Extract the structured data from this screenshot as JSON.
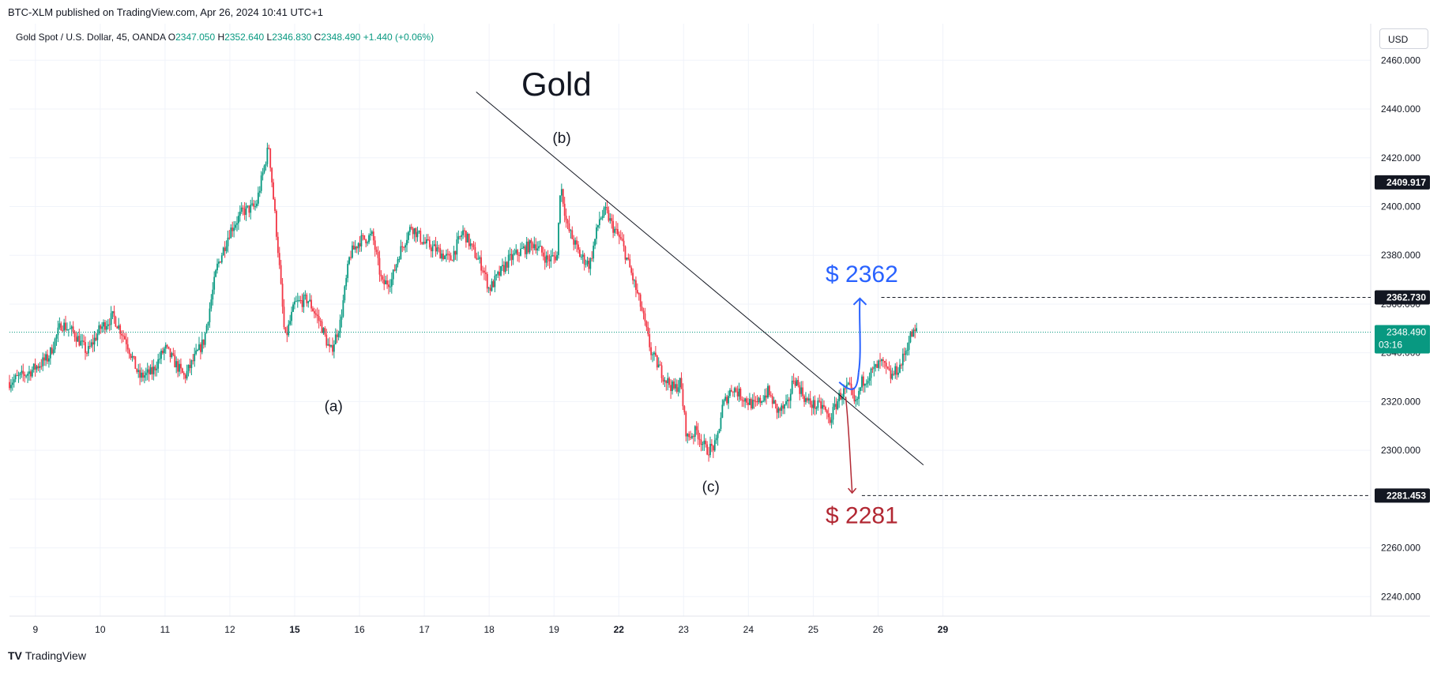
{
  "published": "BTC-XLM published on TradingView.com, Apr 26, 2024 10:41 UTC+1",
  "currency": "USD",
  "footer": {
    "logo": "TV",
    "brand": "TradingView"
  },
  "colors": {
    "up": "#089981",
    "down": "#f23645",
    "target_up": "#2962ff",
    "target_down": "#b22833",
    "label_bg": "#131722"
  },
  "chart_data": {
    "type": "candlestick",
    "title": "Gold",
    "legend": {
      "symbol": "Gold Spot / U.S. Dollar, 45, OANDA",
      "o_label": "O",
      "o": "2347.050",
      "h_label": "H",
      "h": "2352.640",
      "l_label": "L",
      "l": "2346.830",
      "c_label": "C",
      "c": "2348.490",
      "change": "+1.440 (+0.06%)"
    },
    "ylim": [
      2232,
      2475
    ],
    "xlim": [
      8.6,
      29.6
    ],
    "y_ticks": [
      "2240.000",
      "2260.000",
      "2280.000",
      "2300.000",
      "2320.000",
      "2340.000",
      "2360.000",
      "2380.000",
      "2400.000",
      "2420.000",
      "2440.000",
      "2460.000"
    ],
    "x_ticks": [
      {
        "x": 9,
        "label": "9"
      },
      {
        "x": 10,
        "label": "10"
      },
      {
        "x": 11,
        "label": "11"
      },
      {
        "x": 12,
        "label": "12"
      },
      {
        "x": 13,
        "label": "15"
      },
      {
        "x": 14,
        "label": "16"
      },
      {
        "x": 15,
        "label": "17"
      },
      {
        "x": 16,
        "label": "18"
      },
      {
        "x": 17,
        "label": "19"
      },
      {
        "x": 18,
        "label": "22"
      },
      {
        "x": 19,
        "label": "23"
      },
      {
        "x": 20,
        "label": "24"
      },
      {
        "x": 21,
        "label": "25"
      },
      {
        "x": 22,
        "label": "26"
      },
      {
        "x": 23,
        "label": "29"
      }
    ],
    "anchors": [
      [
        8.6,
        2328
      ],
      [
        8.9,
        2332
      ],
      [
        9.2,
        2338
      ],
      [
        9.4,
        2352
      ],
      [
        9.6,
        2348
      ],
      [
        9.8,
        2340
      ],
      [
        10.0,
        2350
      ],
      [
        10.2,
        2355
      ],
      [
        10.4,
        2345
      ],
      [
        10.6,
        2330
      ],
      [
        10.8,
        2332
      ],
      [
        11.0,
        2342
      ],
      [
        11.3,
        2330
      ],
      [
        11.6,
        2345
      ],
      [
        11.8,
        2375
      ],
      [
        12.0,
        2390
      ],
      [
        12.2,
        2398
      ],
      [
        12.4,
        2400
      ],
      [
        12.6,
        2425
      ],
      [
        12.75,
        2380
      ],
      [
        12.85,
        2345
      ],
      [
        13.0,
        2360
      ],
      [
        13.2,
        2362
      ],
      [
        13.4,
        2352
      ],
      [
        13.55,
        2340
      ],
      [
        13.7,
        2352
      ],
      [
        13.85,
        2380
      ],
      [
        14.0,
        2386
      ],
      [
        14.2,
        2388
      ],
      [
        14.35,
        2368
      ],
      [
        14.5,
        2370
      ],
      [
        14.6,
        2380
      ],
      [
        14.8,
        2392
      ],
      [
        15.0,
        2385
      ],
      [
        15.2,
        2382
      ],
      [
        15.4,
        2378
      ],
      [
        15.6,
        2390
      ],
      [
        15.75,
        2382
      ],
      [
        15.9,
        2375
      ],
      [
        16.0,
        2366
      ],
      [
        16.15,
        2372
      ],
      [
        16.3,
        2378
      ],
      [
        16.5,
        2382
      ],
      [
        16.7,
        2385
      ],
      [
        16.9,
        2378
      ],
      [
        17.05,
        2380
      ],
      [
        17.1,
        2410
      ],
      [
        17.2,
        2392
      ],
      [
        17.4,
        2380
      ],
      [
        17.55,
        2376
      ],
      [
        17.7,
        2395
      ],
      [
        17.8,
        2398
      ],
      [
        17.9,
        2392
      ],
      [
        18.05,
        2385
      ],
      [
        18.2,
        2372
      ],
      [
        18.35,
        2358
      ],
      [
        18.5,
        2340
      ],
      [
        18.7,
        2330
      ],
      [
        18.85,
        2325
      ],
      [
        18.95,
        2328
      ],
      [
        19.05,
        2305
      ],
      [
        19.2,
        2308
      ],
      [
        19.35,
        2300
      ],
      [
        19.5,
        2302
      ],
      [
        19.6,
        2318
      ],
      [
        19.75,
        2326
      ],
      [
        19.9,
        2322
      ],
      [
        20.1,
        2318
      ],
      [
        20.3,
        2324
      ],
      [
        20.45,
        2316
      ],
      [
        20.6,
        2318
      ],
      [
        20.7,
        2330
      ],
      [
        20.9,
        2320
      ],
      [
        21.05,
        2318
      ],
      [
        21.15,
        2318
      ],
      [
        21.25,
        2312
      ],
      [
        21.4,
        2322
      ],
      [
        21.55,
        2326
      ],
      [
        21.65,
        2318
      ],
      [
        21.75,
        2328
      ],
      [
        21.9,
        2332
      ],
      [
        22.05,
        2336
      ],
      [
        22.2,
        2330
      ],
      [
        22.35,
        2335
      ],
      [
        22.5,
        2347
      ],
      [
        22.6,
        2349
      ]
    ],
    "trendline": {
      "from": [
        15.8,
        2447
      ],
      "to": [
        22.7,
        2294
      ]
    },
    "waves": [
      {
        "label": "(a)",
        "x": 13.6,
        "y": 2316
      },
      {
        "label": "(b)",
        "x": 17.12,
        "y": 2426
      },
      {
        "label": "(c)",
        "x": 19.42,
        "y": 2283
      }
    ],
    "price_labels": [
      {
        "value": "2409.917",
        "y": 2409.917
      },
      {
        "value": "2362.730",
        "y": 2362.73
      },
      {
        "value": "2281.453",
        "y": 2281.453
      }
    ],
    "current_price": {
      "value": "2348.490",
      "countdown": "03:16",
      "y": 2348.49
    },
    "targets": [
      {
        "label": "$ 2362",
        "y": 2362.73,
        "direction": "up"
      },
      {
        "label": "$ 2281",
        "y": 2281.453,
        "direction": "down"
      }
    ]
  }
}
